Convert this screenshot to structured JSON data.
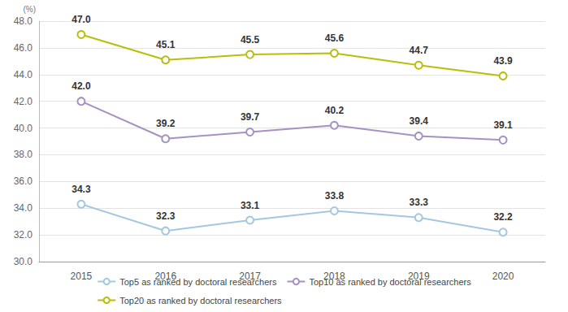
{
  "chart_data": {
    "type": "line",
    "y_label": "(%)",
    "categories": [
      "2015",
      "2016",
      "2017",
      "2018",
      "2019",
      "2020"
    ],
    "series": [
      {
        "name": "Top5 as ranked by doctoral researchers",
        "color": "#a3c8e0",
        "values": [
          34.3,
          32.3,
          33.1,
          33.8,
          33.3,
          32.2
        ],
        "value_labels": [
          "34.3",
          "32.3",
          "33.1",
          "33.8",
          "33.3",
          "32.2"
        ]
      },
      {
        "name": "Top10 as ranked by doctoral researchers",
        "color": "#a692c2",
        "values": [
          42.0,
          39.2,
          39.7,
          40.2,
          39.4,
          39.1
        ],
        "value_labels": [
          "42.0",
          "39.2",
          "39.7",
          "40.2",
          "39.4",
          "39.1"
        ]
      },
      {
        "name": "Top20 as ranked by doctoral researchers",
        "color": "#b8be0a",
        "values": [
          47.0,
          45.1,
          45.5,
          45.6,
          44.7,
          43.9
        ],
        "value_labels": [
          "47.0",
          "45.1",
          "45.5",
          "45.6",
          "44.7",
          "43.9"
        ]
      }
    ],
    "ylim": [
      30,
      48
    ],
    "yticks": [
      {
        "value": 30,
        "label": "30.0"
      },
      {
        "value": 32,
        "label": "32.0"
      },
      {
        "value": 34,
        "label": "34.0"
      },
      {
        "value": 36,
        "label": "36.0"
      },
      {
        "value": 38,
        "label": "38.0"
      },
      {
        "value": 40,
        "label": "40.0"
      },
      {
        "value": 42,
        "label": "42.0"
      },
      {
        "value": 44,
        "label": "44.0"
      },
      {
        "value": 46,
        "label": "46.0"
      },
      {
        "value": 48,
        "label": "48.0"
      }
    ],
    "grid": true,
    "legend": "bottom",
    "data_labels": true,
    "marker": "circle",
    "line_style": "solid"
  }
}
